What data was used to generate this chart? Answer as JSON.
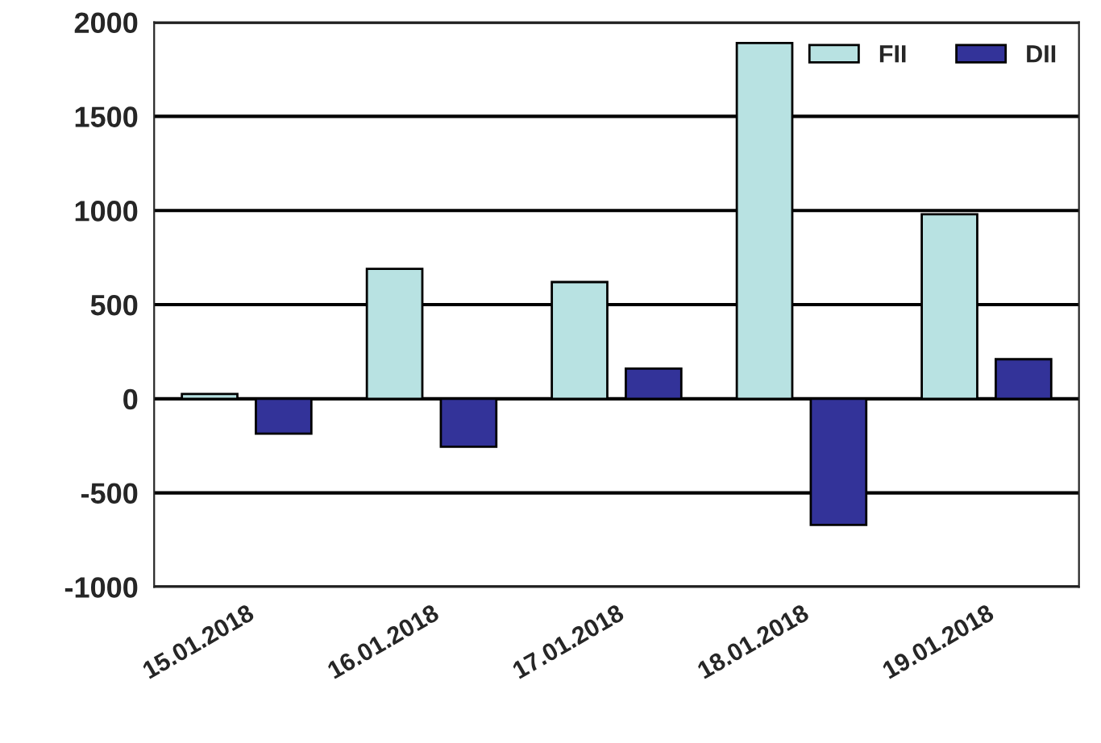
{
  "chart_data": {
    "type": "bar",
    "categories": [
      "15.01.2018",
      "16.01.2018",
      "17.01.2018",
      "18.01.2018",
      "19.01.2018"
    ],
    "series": [
      {
        "name": "FII",
        "color": "#b8e2e2",
        "values": [
          25,
          690,
          620,
          1890,
          980
        ]
      },
      {
        "name": "DII",
        "color": "#333399",
        "values": [
          -185,
          -255,
          160,
          -670,
          210
        ]
      }
    ],
    "ylim": [
      -1000,
      2000
    ],
    "yticks": [
      -1000,
      -500,
      0,
      500,
      1000,
      1500,
      2000
    ],
    "grid": "y",
    "legend": "top right"
  }
}
